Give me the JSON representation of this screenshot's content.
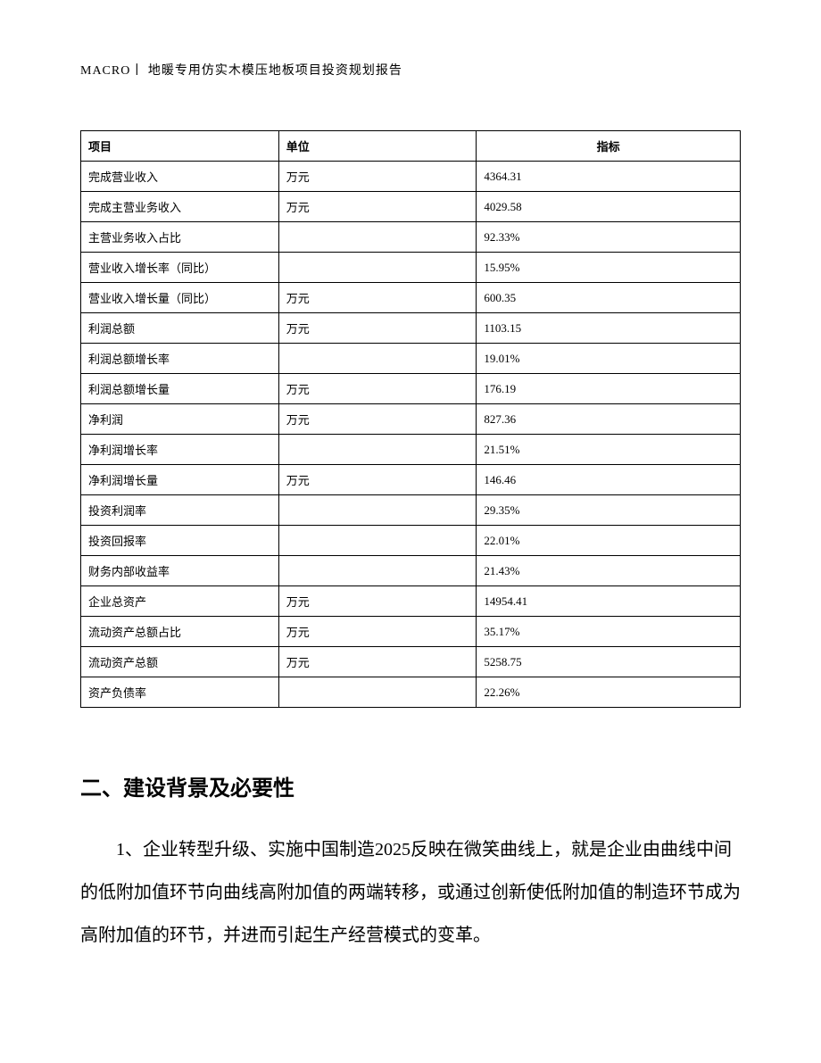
{
  "header": {
    "text": "MACRO丨 地暖专用仿实木模压地板项目投资规划报告"
  },
  "table": {
    "columns": [
      "项目",
      "单位",
      "指标"
    ],
    "rows": [
      [
        "完成营业收入",
        "万元",
        "4364.31"
      ],
      [
        "完成主营业务收入",
        "万元",
        "4029.58"
      ],
      [
        "主营业务收入占比",
        "",
        "92.33%"
      ],
      [
        "营业收入增长率（同比）",
        "",
        "15.95%"
      ],
      [
        "营业收入增长量（同比）",
        "万元",
        "600.35"
      ],
      [
        "利润总额",
        "万元",
        "1103.15"
      ],
      [
        "利润总额增长率",
        "",
        "19.01%"
      ],
      [
        "利润总额增长量",
        "万元",
        "176.19"
      ],
      [
        "净利润",
        "万元",
        "827.36"
      ],
      [
        "净利润增长率",
        "",
        "21.51%"
      ],
      [
        "净利润增长量",
        "万元",
        "146.46"
      ],
      [
        "投资利润率",
        "",
        "29.35%"
      ],
      [
        "投资回报率",
        "",
        "22.01%"
      ],
      [
        "财务内部收益率",
        "",
        "21.43%"
      ],
      [
        "企业总资产",
        "万元",
        "14954.41"
      ],
      [
        "流动资产总额占比",
        "万元",
        "35.17%"
      ],
      [
        "流动资产总额",
        "万元",
        "5258.75"
      ],
      [
        "资产负债率",
        "",
        "22.26%"
      ]
    ]
  },
  "section": {
    "heading": "二、建设背景及必要性",
    "paragraph": "1、企业转型升级、实施中国制造2025反映在微笑曲线上，就是企业由曲线中间的低附加值环节向曲线高附加值的两端转移，或通过创新使低附加值的制造环节成为高附加值的环节，并进而引起生产经营模式的变革。"
  },
  "styles": {
    "background_color": "#ffffff",
    "text_color": "#000000",
    "border_color": "#000000",
    "header_fontsize": 14,
    "table_fontsize": 13,
    "heading_fontsize": 24,
    "body_fontsize": 20
  }
}
